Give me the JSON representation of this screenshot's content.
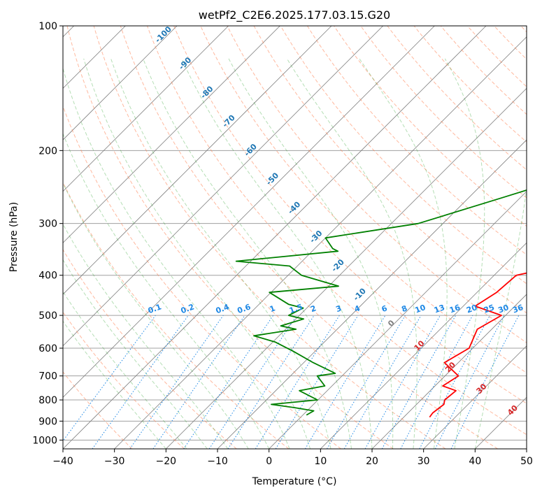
{
  "chart_data": {
    "type": "line",
    "subtype": "skew-t log-p diagram",
    "title": "wetPf2_C2E6.2025.177.03.15.G20",
    "xlabel": "Temperature (°C)",
    "ylabel": "Pressure (hPa)",
    "xlim": [
      -40,
      50
    ],
    "ylim": [
      1050,
      100
    ],
    "y_scale": "log",
    "grid": true,
    "x_ticks": [
      "−40",
      "−30",
      "−20",
      "−10",
      "0",
      "10",
      "20",
      "30",
      "40",
      "50"
    ],
    "y_ticks": [
      "100",
      "200",
      "300",
      "400",
      "500",
      "600",
      "700",
      "800",
      "900",
      "1000"
    ],
    "series": [
      {
        "color": "#ff0000",
        "points": [
          [
            23.7,
            100
          ],
          [
            20.1,
            110
          ],
          [
            16.9,
            122
          ],
          [
            16.6,
            133
          ],
          [
            18.4,
            150
          ],
          [
            21.4,
            175
          ],
          [
            23.8,
            200
          ],
          [
            23.5,
            220
          ],
          [
            27.2,
            250
          ],
          [
            24.6,
            300
          ],
          [
            21.1,
            355
          ],
          [
            19.2,
            385
          ],
          [
            14.3,
            400
          ],
          [
            13.8,
            440
          ],
          [
            12.3,
            475
          ],
          [
            19.2,
            500
          ],
          [
            17.2,
            540
          ],
          [
            19.3,
            600
          ],
          [
            17.3,
            650
          ],
          [
            22.6,
            700
          ],
          [
            21.5,
            740
          ],
          [
            25.0,
            760
          ],
          [
            24.6,
            800
          ],
          [
            25.3,
            820
          ],
          [
            24.8,
            860
          ],
          [
            25.0,
            880
          ]
        ]
      },
      {
        "color": "#008000",
        "points": [
          [
            0.8,
            100
          ],
          [
            -1.2,
            110
          ],
          [
            -3.6,
            125
          ],
          [
            -2.5,
            135
          ],
          [
            1.3,
            160
          ],
          [
            4.6,
            190
          ],
          [
            7.8,
            225
          ],
          [
            -3.5,
            260
          ],
          [
            -14.8,
            300
          ],
          [
            -30.0,
            325
          ],
          [
            -26.5,
            345
          ],
          [
            -25.0,
            350
          ],
          [
            -42.8,
            370
          ],
          [
            -31.5,
            380
          ],
          [
            -27.4,
            400
          ],
          [
            -18.1,
            425
          ],
          [
            -30.3,
            440
          ],
          [
            -24.3,
            470
          ],
          [
            -20.7,
            480
          ],
          [
            -22.1,
            500
          ],
          [
            -18.5,
            510
          ],
          [
            -21.6,
            530
          ],
          [
            -18.0,
            540
          ],
          [
            -24.9,
            560
          ],
          [
            -19.5,
            580
          ],
          [
            -14.3,
            610
          ],
          [
            -8.2,
            650
          ],
          [
            -1.8,
            690
          ],
          [
            -4.8,
            700
          ],
          [
            -1.4,
            740
          ],
          [
            -5.4,
            760
          ],
          [
            -0.1,
            800
          ],
          [
            -8.2,
            820
          ],
          [
            -3.1,
            835
          ],
          [
            1.3,
            850
          ],
          [
            0.7,
            870
          ]
        ]
      }
    ],
    "dry_adiabat_labels": [
      "-100",
      "-90",
      "-80",
      "-70",
      "-60",
      "-50",
      "-40",
      "-30",
      "-20",
      "-10",
      "0",
      "10",
      "20",
      "30",
      "40"
    ],
    "dry_adiabat_label_color": "#1f77b4",
    "moist_adiabat_color": "#2ca02c",
    "isotherm_color": "#808080",
    "mixing_ratio_labels": [
      "0.1",
      "0.2",
      "0.4",
      "0.6",
      "1",
      "1.5",
      "2",
      "3",
      "4",
      "6",
      "8",
      "10",
      "13",
      "16",
      "20",
      "25",
      "30",
      "36"
    ],
    "mixing_ratio_color": "#1e88e5",
    "dry_adiabat_line_color": "#ff7f50",
    "isobar_color": "#a0a0a0"
  }
}
